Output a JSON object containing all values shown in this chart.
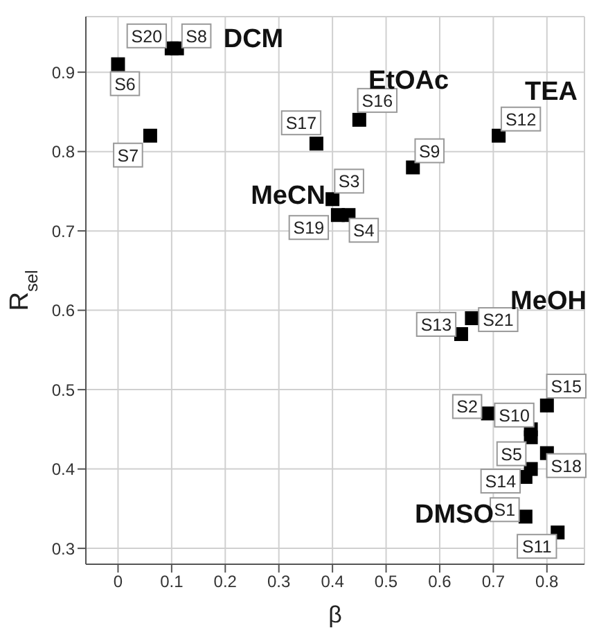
{
  "chart_data": {
    "type": "scatter",
    "xlabel": "β",
    "ylabel": "R$_{sel}$",
    "x": [
      0,
      0.1,
      0.11,
      0.06,
      0.37,
      0.45,
      0.55,
      0.71,
      0.4,
      0.41,
      0.43,
      0.64,
      0.66,
      0.69,
      0.77,
      0.8,
      0.8,
      0.77,
      0.76,
      0.76,
      0.82,
      0.77
    ],
    "series": [
      {
        "color": "#000000",
        "values": [
          0.91,
          0.93,
          0.93,
          0.82,
          0.81,
          0.84,
          0.78,
          0.82,
          0.74,
          0.72,
          0.72,
          0.57,
          0.59,
          0.47,
          0.44,
          0.48,
          0.42,
          0.4,
          0.39,
          0.34,
          0.32,
          0.45
        ]
      }
    ],
    "xlim": [
      -0.06,
      0.87
    ],
    "ylim": [
      0.28,
      0.97
    ],
    "xticks": [
      0,
      0.1,
      0.2,
      0.3,
      0.4,
      0.5,
      0.6,
      0.7,
      0.8
    ],
    "yticks": [
      0.3,
      0.4,
      0.5,
      0.6,
      0.7,
      0.8,
      0.9
    ],
    "grid": true,
    "marker": "square",
    "annotations": [
      {
        "text": "S6",
        "x": 0,
        "y": 0.91
      },
      {
        "text": "S20",
        "x": 0.1,
        "y": 0.93
      },
      {
        "text": "S8",
        "x": 0.11,
        "y": 0.93
      },
      {
        "text": "S7",
        "x": 0.06,
        "y": 0.82
      },
      {
        "text": "S17",
        "x": 0.37,
        "y": 0.81
      },
      {
        "text": "S16",
        "x": 0.45,
        "y": 0.84
      },
      {
        "text": "S9",
        "x": 0.55,
        "y": 0.78
      },
      {
        "text": "S12",
        "x": 0.71,
        "y": 0.82
      },
      {
        "text": "S3",
        "x": 0.4,
        "y": 0.74
      },
      {
        "text": "S19",
        "x": 0.41,
        "y": 0.72
      },
      {
        "text": "S4",
        "x": 0.43,
        "y": 0.72
      },
      {
        "text": "S13",
        "x": 0.64,
        "y": 0.57
      },
      {
        "text": "S21",
        "x": 0.66,
        "y": 0.59
      },
      {
        "text": "S2",
        "x": 0.69,
        "y": 0.47
      },
      {
        "text": "S10",
        "x": 0.77,
        "y": 0.44
      },
      {
        "text": "S15",
        "x": 0.8,
        "y": 0.48
      },
      {
        "text": "S18",
        "x": 0.8,
        "y": 0.42
      },
      {
        "text": "S5",
        "x": 0.77,
        "y": 0.4
      },
      {
        "text": "S14",
        "x": 0.76,
        "y": 0.39
      },
      {
        "text": "S1",
        "x": 0.76,
        "y": 0.34
      },
      {
        "text": "S11",
        "x": 0.82,
        "y": 0.32
      },
      "DCM",
      "EtOAc",
      "TEA",
      "MeCN",
      "MeOH",
      "DMSO"
    ]
  }
}
